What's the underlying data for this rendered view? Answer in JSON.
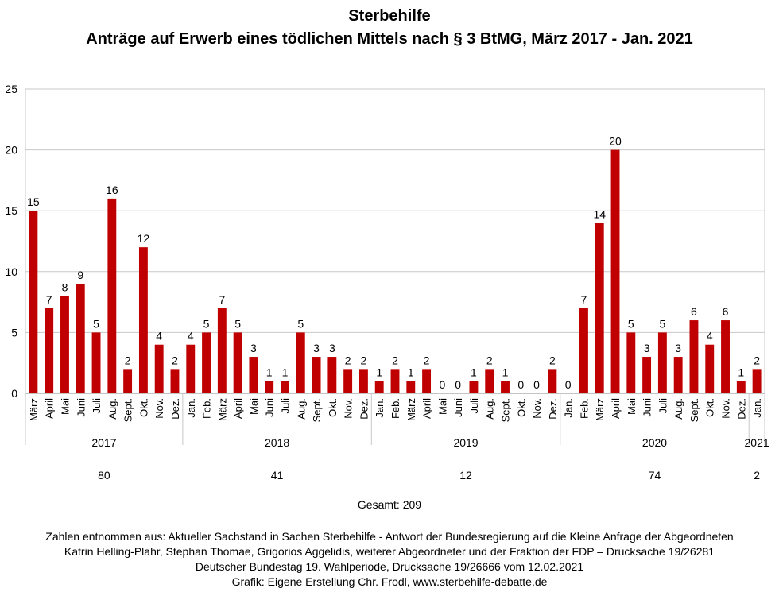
{
  "chart_data": {
    "type": "bar",
    "title": "Sterbehilfe",
    "subtitle": "Anträge auf Erwerb eines tödlichen Mittels nach § 3 BtMG, März 2017 - Jan. 2021",
    "ylim": [
      0,
      25
    ],
    "yticks": [
      0,
      5,
      10,
      15,
      20,
      25
    ],
    "grid": true,
    "bar_color": "#c00000",
    "categories": [
      "März",
      "April",
      "Mai",
      "Juni",
      "Juli",
      "Aug.",
      "Sept.",
      "Okt.",
      "Nov.",
      "Dez.",
      "Jan.",
      "Feb.",
      "März",
      "April",
      "Mai",
      "Juni",
      "Juli",
      "Aug.",
      "Sept.",
      "Okt.",
      "Nov.",
      "Dez.",
      "Jan.",
      "Feb.",
      "März",
      "April",
      "Mai",
      "Juni",
      "Juli",
      "Aug.",
      "Sept.",
      "Okt.",
      "Nov.",
      "Dez.",
      "Jan.",
      "Feb.",
      "März",
      "April",
      "Mai",
      "Juni",
      "Juli",
      "Aug.",
      "Sept.",
      "Okt.",
      "Nov.",
      "Dez.",
      "Jan."
    ],
    "values": [
      15,
      7,
      8,
      9,
      5,
      16,
      2,
      12,
      4,
      2,
      4,
      5,
      7,
      5,
      3,
      1,
      1,
      5,
      3,
      3,
      2,
      2,
      1,
      2,
      1,
      2,
      0,
      0,
      1,
      2,
      1,
      0,
      0,
      2,
      0,
      7,
      14,
      20,
      5,
      3,
      5,
      3,
      6,
      4,
      6,
      1,
      2
    ],
    "years": [
      {
        "label": "2017",
        "start": 0,
        "end": 9,
        "total": "80"
      },
      {
        "label": "2018",
        "start": 10,
        "end": 21,
        "total": "41"
      },
      {
        "label": "2019",
        "start": 22,
        "end": 33,
        "total": "12"
      },
      {
        "label": "2020",
        "start": 34,
        "end": 45,
        "total": "74"
      },
      {
        "label": "2021",
        "start": 46,
        "end": 46,
        "total": "2"
      }
    ],
    "total_label": "Gesamt: 209"
  },
  "footer": {
    "line1": "Zahlen entnommen aus: Aktueller Sachstand in Sachen Sterbehilfe - Antwort der Bundesregierung auf die Kleine Anfrage der Abgeordneten",
    "line2": "Katrin Helling-Plahr, Stephan Thomae, Grigorios Aggelidis, weiterer Abgeordneter und der Fraktion der FDP – Drucksache 19/26281",
    "line3": "Deutscher Bundestag 19. Wahlperiode, Drucksache 19/26666 vom 12.02.2021",
    "line4": "Grafik: Eigene Erstellung Chr. Frodl, www.sterbehilfe-debatte.de"
  }
}
